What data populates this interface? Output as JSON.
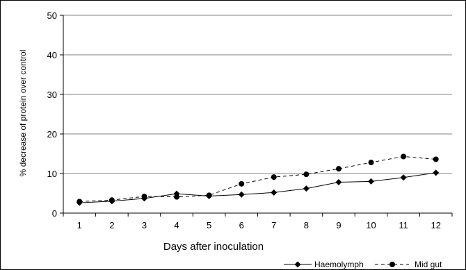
{
  "chart_data": {
    "type": "line",
    "title": "",
    "xlabel": "Days after inoculation",
    "ylabel": "% decrease of protein over control",
    "x": [
      1,
      2,
      3,
      4,
      5,
      6,
      7,
      8,
      9,
      10,
      11,
      12
    ],
    "ylim": [
      0,
      50
    ],
    "yticks": [
      0,
      10,
      20,
      30,
      40,
      50
    ],
    "grid": true,
    "legend_position": "bottom-right",
    "series": [
      {
        "name": "Haemolymph",
        "marker": "diamond",
        "line_style": "solid",
        "color": "#000000",
        "values": [
          2.6,
          3.0,
          3.7,
          4.9,
          4.3,
          4.7,
          5.2,
          6.2,
          7.8,
          8.0,
          9.0,
          10.2
        ]
      },
      {
        "name": "Mid gut",
        "marker": "circle",
        "line_style": "dashed",
        "color": "#000000",
        "values": [
          2.9,
          3.3,
          4.2,
          4.1,
          4.5,
          7.4,
          9.1,
          9.8,
          11.2,
          12.8,
          14.3,
          13.6
        ]
      }
    ]
  }
}
